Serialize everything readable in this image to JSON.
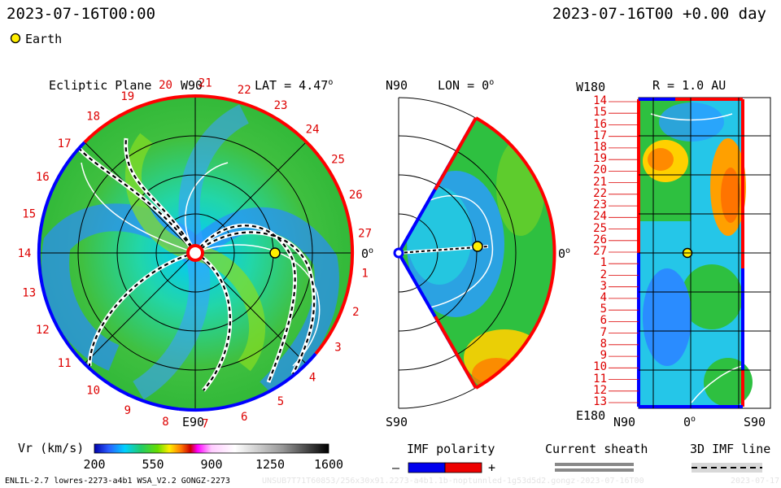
{
  "header": {
    "time_left": "2023-07-16T00:00",
    "time_right": "2023-07-16T00 +0.00 day",
    "legend_earth_label": "Earth"
  },
  "ecliptic": {
    "title": "Ecliptic Plane",
    "lat_label": "LAT = 4.47",
    "lat_deg_mark": "o",
    "top_label": "W90",
    "bottom_label": "E90",
    "right_label": "0",
    "right_deg_mark": "o",
    "rotation_labels": [
      "19",
      "20",
      "21",
      "22",
      "23",
      "24",
      "25",
      "26",
      "27",
      "1",
      "2",
      "3",
      "4",
      "5",
      "6",
      "7",
      "8",
      "9",
      "10",
      "11",
      "12",
      "13",
      "14",
      "15",
      "16",
      "17",
      "18"
    ]
  },
  "meridional": {
    "top_label": "N90",
    "lon_label": "LON = 0",
    "lon_deg_mark": "o",
    "bottom_label": "S90",
    "right_label": "0",
    "right_deg_mark": "o"
  },
  "radial": {
    "title": "R = 1.0 AU",
    "top_left_label": "W180",
    "bottom_left_label": "E180",
    "bottom_labels": [
      "N90",
      "0",
      "S90"
    ],
    "bottom_deg_mark": "o",
    "row_labels": [
      "14",
      "15",
      "16",
      "17",
      "18",
      "19",
      "20",
      "21",
      "22",
      "23",
      "24",
      "25",
      "26",
      "27",
      "1",
      "2",
      "3",
      "4",
      "5",
      "6",
      "7",
      "8",
      "9",
      "10",
      "11",
      "12",
      "13"
    ]
  },
  "colorbar": {
    "label": "Vr (km/s)",
    "ticks": [
      "200",
      "550",
      "900",
      "1250",
      "1600"
    ]
  },
  "imf": {
    "title": "IMF polarity",
    "minus": "–",
    "plus": "+",
    "colors": {
      "negative": "#0000ee",
      "positive": "#ee0000"
    }
  },
  "sheath": {
    "title": "Current sheath"
  },
  "imf_line": {
    "title": "3D IMF line"
  },
  "footer": {
    "model_info": "ENLIL-2.7 lowres-2273-a4b1 WSA_V2.2 GONGZ-2273",
    "run_info": "UNSUB7T71T60853/256x30x91.2273-a4b1.1b-noptunnled-1g53d5d2.gongz-2023-07-16T00",
    "run_date": "2023-07-17"
  },
  "chart_data": [
    {
      "type": "heatmap",
      "title": "Ecliptic Plane",
      "quantity": "Vr",
      "unit": "km/s",
      "earth": {
        "azimuth_deg": 0,
        "r_au": 1.0
      },
      "colorbar_range": [
        200,
        1600
      ]
    },
    {
      "type": "heatmap",
      "title": "LON = 0",
      "quantity": "Vr",
      "unit": "km/s",
      "earth": {
        "lat_deg": 4.47,
        "r_au": 1.0
      },
      "colorbar_range": [
        200,
        1600
      ]
    },
    {
      "type": "heatmap",
      "title": "R = 1.0 AU",
      "quantity": "Vr",
      "unit": "km/s",
      "earth": {
        "lat_deg": 4.47,
        "lon_deg": 0
      },
      "colorbar_range": [
        200,
        1600
      ]
    }
  ]
}
